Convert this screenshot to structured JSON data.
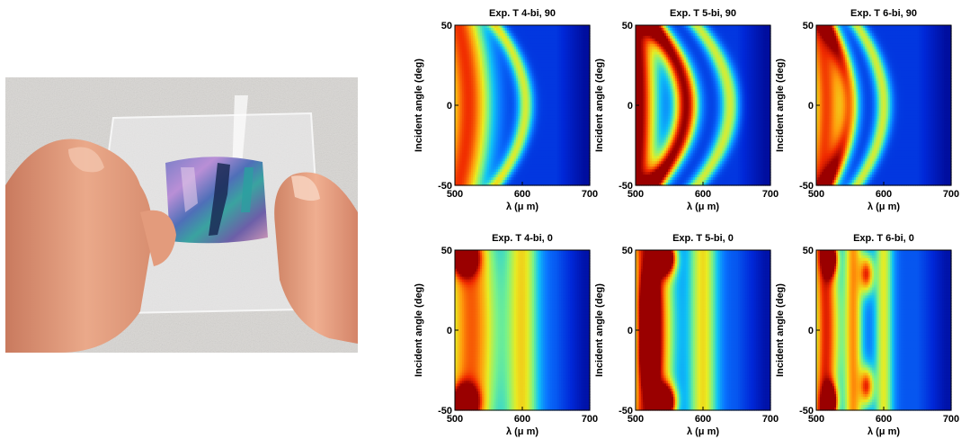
{
  "colors": {
    "cmap": [
      "#00007f",
      "#0028d8",
      "#0a74ff",
      "#10c4f4",
      "#78f28a",
      "#e8ec22",
      "#ff9a0c",
      "#f02a00",
      "#9a0000"
    ],
    "skin": "#e9a385",
    "background_cloth": "#d8d6d3"
  },
  "photo": {
    "icon": "hand-holding-flexible-iridescent-film"
  },
  "chart_data": [
    {
      "type": "heatmap",
      "title": "Exp. T 4-bi, 90",
      "xlabel": "λ (μ m)",
      "ylabel": "Incident angle (deg)",
      "xlim": [
        500,
        700
      ],
      "ylim": [
        -50,
        50
      ],
      "xticks": [
        500,
        600,
        700
      ],
      "yticks": [
        -50,
        0,
        50
      ],
      "xtick_labels": [
        "500",
        "600",
        "700"
      ],
      "ytick_labels": [
        "-50",
        "0",
        "50"
      ],
      "colormap": "jet",
      "bands": [
        {
          "center_at_0deg": 520,
          "center_at_50deg": 505,
          "width": 35,
          "peak": 0.72
        },
        {
          "center_at_0deg": 605,
          "center_at_50deg": 560,
          "width": 12,
          "peak": 0.45
        }
      ],
      "base": 0.15
    },
    {
      "type": "heatmap",
      "title": "Exp. T 5-bi, 90",
      "xlabel": "λ (μ m)",
      "ylabel": "Incident angle (deg)",
      "xlim": [
        500,
        700
      ],
      "ylim": [
        -50,
        50
      ],
      "xticks": [
        500,
        600,
        700
      ],
      "yticks": [
        -50,
        0,
        50
      ],
      "xtick_labels": [
        "500",
        "600",
        "700"
      ],
      "ytick_labels": [
        "-50",
        "0",
        "50"
      ],
      "colormap": "jet",
      "bands": [
        {
          "center_at_0deg": 500,
          "center_at_50deg": 495,
          "width": 30,
          "peak": 0.95
        },
        {
          "center_at_0deg": 575,
          "center_at_50deg": 525,
          "width": 18,
          "peak": 0.85
        },
        {
          "center_at_0deg": 640,
          "center_at_50deg": 590,
          "width": 14,
          "peak": 0.45
        }
      ],
      "base": 0.15
    },
    {
      "type": "heatmap",
      "title": "Exp. T 6-bi, 90",
      "xlabel": "λ (μ m)",
      "ylabel": "Incident angle (deg)",
      "xlim": [
        500,
        700
      ],
      "ylim": [
        -50,
        50
      ],
      "xticks": [
        500,
        600,
        700
      ],
      "yticks": [
        -50,
        0,
        50
      ],
      "xtick_labels": [
        "500",
        "600",
        "700"
      ],
      "ytick_labels": [
        "-50",
        "0",
        "50"
      ],
      "colormap": "jet",
      "bands": [
        {
          "center_at_0deg": 515,
          "center_at_50deg": 502,
          "width": 25,
          "peak": 0.7
        },
        {
          "center_at_0deg": 550,
          "center_at_50deg": 515,
          "width": 14,
          "peak": 0.55
        },
        {
          "center_at_0deg": 600,
          "center_at_50deg": 560,
          "width": 12,
          "peak": 0.45
        }
      ],
      "base": 0.15
    },
    {
      "type": "heatmap",
      "title": "Exp. T 4-bi, 0",
      "xlabel": "λ (μ m)",
      "ylabel": "Incident angle (deg)",
      "xlim": [
        500,
        700
      ],
      "ylim": [
        -50,
        50
      ],
      "xticks": [
        500,
        600,
        700
      ],
      "yticks": [
        -50,
        0,
        50
      ],
      "xtick_labels": [
        "500",
        "600",
        "700"
      ],
      "ytick_labels": [
        "-50",
        "0",
        "50"
      ],
      "colormap": "jet",
      "bands": [
        {
          "center_at_0deg": 525,
          "center_at_50deg": 520,
          "width": 40,
          "peak": 0.62
        },
        {
          "center_at_0deg": 600,
          "center_at_50deg": 600,
          "width": 25,
          "peak": 0.45
        }
      ],
      "spots": [
        {
          "lambda": 515,
          "angle": 45,
          "width": 18,
          "height": 10,
          "peak": 0.8
        },
        {
          "lambda": 515,
          "angle": -45,
          "width": 18,
          "height": 10,
          "peak": 0.85
        }
      ],
      "base": 0.2
    },
    {
      "type": "heatmap",
      "title": "Exp. T 5-bi, 0",
      "xlabel": "λ (μ m)",
      "ylabel": "Incident angle (deg)",
      "xlim": [
        500,
        700
      ],
      "ylim": [
        -50,
        50
      ],
      "xticks": [
        500,
        600,
        700
      ],
      "yticks": [
        -50,
        0,
        50
      ],
      "xtick_labels": [
        "500",
        "600",
        "700"
      ],
      "ytick_labels": [
        "-50",
        "0",
        "50"
      ],
      "colormap": "jet",
      "bands": [
        {
          "center_at_0deg": 525,
          "center_at_50deg": 520,
          "width": 30,
          "peak": 0.8
        },
        {
          "center_at_0deg": 600,
          "center_at_50deg": 600,
          "width": 22,
          "peak": 0.45
        }
      ],
      "spots": [
        {
          "lambda": 545,
          "angle": 45,
          "width": 14,
          "height": 10,
          "peak": 0.95
        },
        {
          "lambda": 545,
          "angle": -45,
          "width": 14,
          "height": 10,
          "peak": 0.97
        },
        {
          "lambda": 520,
          "angle": 15,
          "width": 12,
          "height": 20,
          "peak": 0.8
        },
        {
          "lambda": 520,
          "angle": -15,
          "width": 12,
          "height": 20,
          "peak": 0.8
        }
      ],
      "base": 0.2
    },
    {
      "type": "heatmap",
      "title": "Exp. T 6-bi, 0",
      "xlabel": "λ (μ m)",
      "ylabel": "Incident angle (deg)",
      "xlim": [
        500,
        700
      ],
      "ylim": [
        -50,
        50
      ],
      "xticks": [
        500,
        600,
        700
      ],
      "yticks": [
        -50,
        0,
        50
      ],
      "xtick_labels": [
        "500",
        "600",
        "700"
      ],
      "ytick_labels": [
        "-50",
        "0",
        "50"
      ],
      "colormap": "jet",
      "bands": [
        {
          "center_at_0deg": 515,
          "center_at_50deg": 510,
          "width": 20,
          "peak": 0.7
        },
        {
          "center_at_0deg": 555,
          "center_at_50deg": 555,
          "width": 14,
          "peak": 0.55
        },
        {
          "center_at_0deg": 600,
          "center_at_50deg": 600,
          "width": 14,
          "peak": 0.42
        }
      ],
      "spots": [
        {
          "lambda": 520,
          "angle": 45,
          "width": 10,
          "height": 10,
          "peak": 0.9
        },
        {
          "lambda": 520,
          "angle": -45,
          "width": 10,
          "height": 10,
          "peak": 0.92
        },
        {
          "lambda": 575,
          "angle": 35,
          "width": 10,
          "height": 12,
          "peak": 0.6
        },
        {
          "lambda": 575,
          "angle": -35,
          "width": 10,
          "height": 12,
          "peak": 0.6
        }
      ],
      "base": 0.2
    }
  ]
}
